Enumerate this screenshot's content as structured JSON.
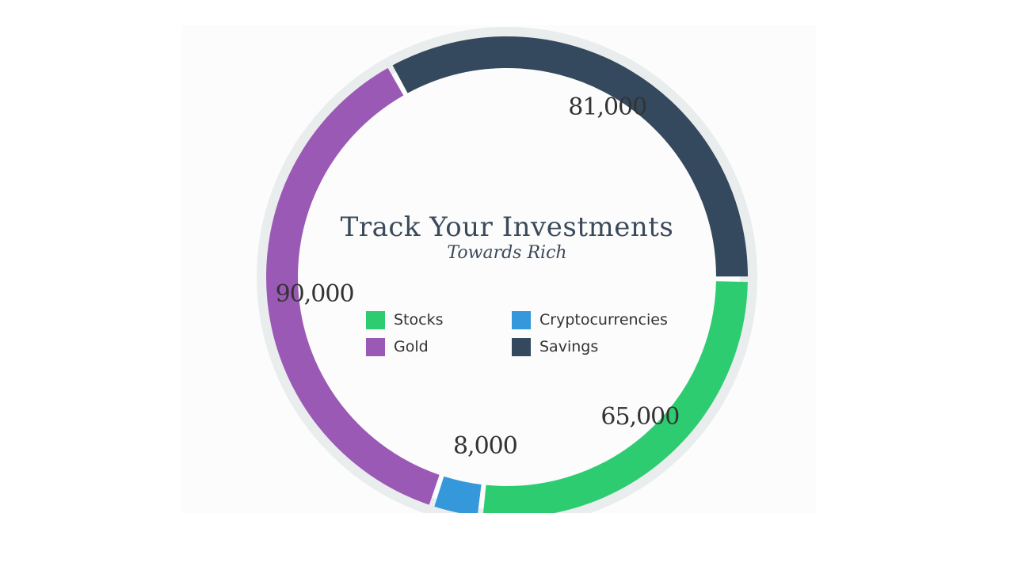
{
  "chart_data": {
    "type": "pie",
    "variant": "donut",
    "title": "Track Your Investments",
    "subtitle": "Towards Rich",
    "categories": [
      "Stocks",
      "Cryptocurrencies",
      "Gold",
      "Savings"
    ],
    "values": [
      65000,
      8000,
      90000,
      81000
    ],
    "value_labels": [
      "65,000",
      "8,000",
      "90,000",
      "81,000"
    ],
    "colors": [
      "#2ecc71",
      "#3498db",
      "#9b59b6",
      "#34495e"
    ],
    "legend": {
      "placement": "center",
      "items": [
        {
          "label": "Stocks",
          "color": "#2ecc71"
        },
        {
          "label": "Cryptocurrencies",
          "color": "#3498db"
        },
        {
          "label": "Gold",
          "color": "#9b59b6"
        },
        {
          "label": "Savings",
          "color": "#34495e"
        }
      ]
    },
    "track_color": "#e9eded"
  }
}
